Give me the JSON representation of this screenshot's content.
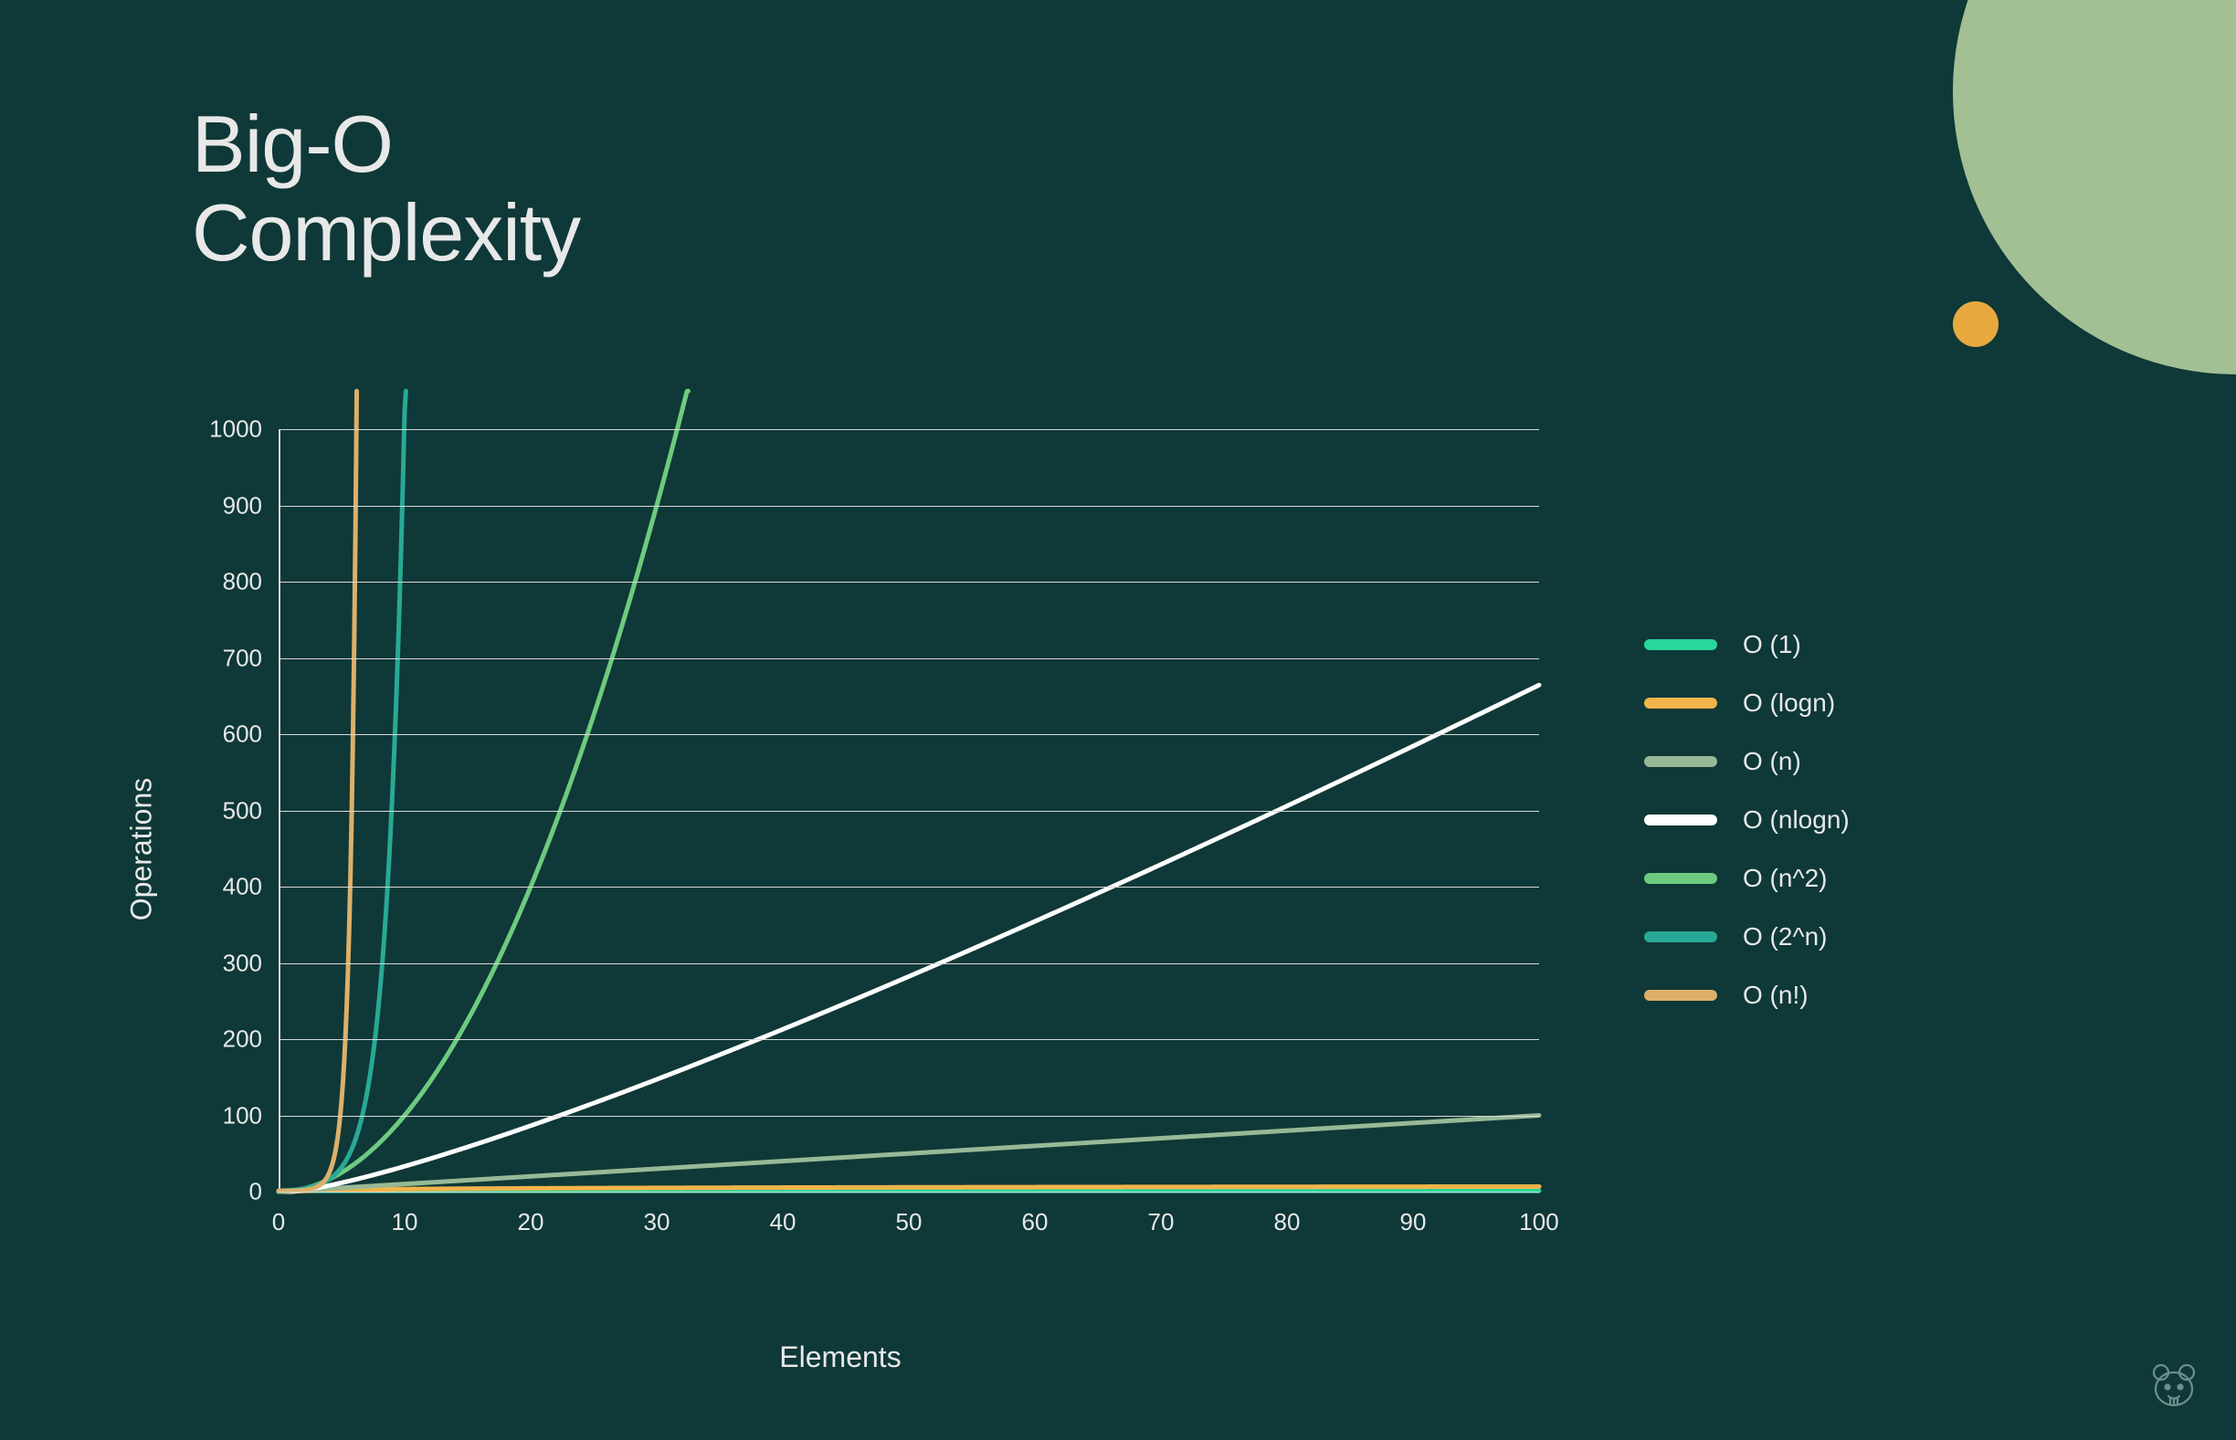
{
  "title_line1": "Big-O",
  "title_line2": "Complexity",
  "background_color": "#0f3838",
  "text_color": "#e8e8e8",
  "grid_color": "#d8d8d8",
  "chart": {
    "type": "line",
    "xlabel": "Elements",
    "ylabel": "Operations",
    "xlim": [
      0,
      100
    ],
    "ylim": [
      0,
      1000
    ],
    "x_ticks": [
      0,
      10,
      20,
      30,
      40,
      50,
      60,
      70,
      80,
      90,
      100
    ],
    "y_ticks": [
      0,
      100,
      200,
      300,
      400,
      500,
      600,
      700,
      800,
      900,
      1000
    ],
    "line_width": 5,
    "axis_fontsize": 32,
    "tick_fontsize": 26,
    "series": [
      {
        "name": "O (1)",
        "color": "#27d89a",
        "formula": "constant",
        "value": 1
      },
      {
        "name": "O (logn)",
        "color": "#f0b44a",
        "formula": "log"
      },
      {
        "name": "O (n)",
        "color": "#97b995",
        "formula": "linear"
      },
      {
        "name": "O (nlogn)",
        "color": "#ffffff",
        "formula": "nlogn"
      },
      {
        "name": "O (n^2)",
        "color": "#6dcb80",
        "formula": "square"
      },
      {
        "name": "O (2^n)",
        "color": "#29a995",
        "formula": "exp2"
      },
      {
        "name": "O (n!)",
        "color": "#dcb06a",
        "formula": "factorial"
      }
    ]
  },
  "legend": {
    "swatch_width": 80,
    "swatch_height": 12,
    "swatch_radius": 6,
    "label_fontsize": 28,
    "gap": 32
  },
  "decoration": {
    "planet_color": "#a2c093",
    "dust_color": "#e7a93e",
    "small_dot_color": "#e7a93e"
  }
}
